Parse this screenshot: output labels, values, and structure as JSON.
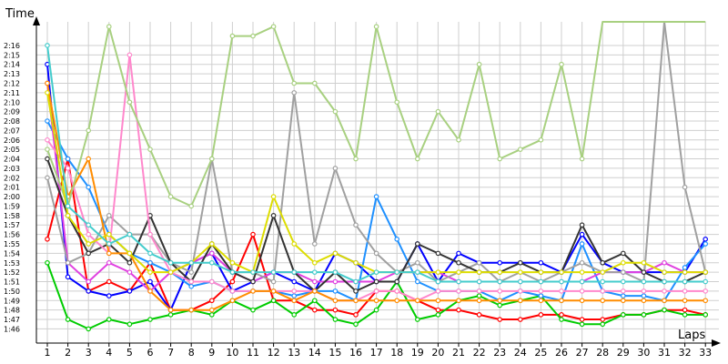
{
  "chart_data": {
    "type": "line",
    "ylabel": "Time",
    "xlabel": "Laps",
    "x": [
      1,
      2,
      3,
      4,
      5,
      6,
      7,
      8,
      9,
      10,
      11,
      12,
      13,
      14,
      15,
      16,
      17,
      18,
      19,
      20,
      21,
      22,
      23,
      24,
      25,
      26,
      27,
      28,
      29,
      30,
      31,
      32,
      33
    ],
    "y_tick_seconds": [
      106,
      107,
      108,
      109,
      110,
      111,
      112,
      113,
      114,
      115,
      116,
      117,
      118,
      119,
      120,
      121,
      122,
      123,
      124,
      125,
      126,
      127,
      128,
      129,
      130,
      131,
      132,
      133,
      134,
      135,
      136
    ],
    "y_tick_labels": [
      "1:46",
      "1:47",
      "1:48",
      "1:49",
      "1:50",
      "1:51",
      "1:52",
      "1:53",
      "1:54",
      "1:55",
      "1:56",
      "1:57",
      "1:58",
      "1:59",
      "2:00",
      "2:01",
      "2:02",
      "2:03",
      "2:04",
      "2:05",
      "2:06",
      "2:07",
      "2:08",
      "2:09",
      "2:10",
      "2:11",
      "2:12",
      "2:13",
      "2:14",
      "2:15",
      "2:16"
    ],
    "ylim_seconds": [
      104.5,
      138.5
    ],
    "grid": true,
    "legend": "none",
    "series": [
      {
        "color": "#ff0000",
        "values": [
          115.5,
          124,
          110,
          111,
          110,
          113,
          108,
          108,
          109,
          111,
          116,
          109,
          109,
          108,
          108,
          107.5,
          110,
          110,
          109,
          108,
          108,
          107.5,
          107,
          107,
          107.5,
          107.5,
          107,
          107,
          107.5,
          107.5,
          108,
          108,
          107.5
        ]
      },
      {
        "color": "#00cc00",
        "values": [
          113,
          107,
          106,
          107,
          106.5,
          107,
          107.5,
          108,
          107.5,
          109,
          108,
          109,
          107.5,
          109,
          107,
          106.5,
          108,
          111,
          107,
          107.5,
          109,
          109.5,
          108.5,
          109,
          109.5,
          107,
          106.5,
          106.5,
          107.5,
          107.5,
          108,
          107.5,
          107.5
        ]
      },
      {
        "color": "#0000ff",
        "values": [
          134,
          111.5,
          110,
          109.5,
          110,
          111,
          108,
          113,
          114,
          110,
          111,
          112,
          111,
          110,
          114,
          113,
          111,
          111,
          115,
          111,
          114,
          113,
          113,
          113,
          113,
          112,
          116,
          113,
          112,
          112,
          112,
          112,
          115.5
        ]
      },
      {
        "color": "#1e90ff",
        "values": [
          128,
          124,
          121,
          116,
          114,
          113,
          112,
          110.5,
          111,
          110,
          110,
          110,
          109.5,
          110,
          110,
          109,
          120,
          115.5,
          111,
          110,
          110,
          110,
          109,
          110,
          109.5,
          109,
          115,
          110,
          109.5,
          109.5,
          109,
          112.5,
          115
        ]
      },
      {
        "color": "#e040e0",
        "values": [
          132,
          113,
          111,
          113,
          112,
          110,
          112,
          113,
          114,
          112,
          111,
          112,
          112,
          111,
          111,
          111,
          111,
          112,
          112,
          112,
          111,
          111,
          111,
          111,
          111,
          111,
          111,
          112,
          112,
          112,
          113,
          112,
          112
        ]
      },
      {
        "color": "#a0a0a0",
        "values": [
          122,
          113,
          114,
          118,
          116,
          116,
          113,
          112,
          124,
          112,
          112,
          111,
          131,
          115,
          123,
          117,
          114,
          112,
          113,
          111,
          112,
          113,
          111,
          112,
          111,
          112,
          113,
          112,
          112,
          111,
          140,
          121,
          112
        ]
      },
      {
        "color": "#333333",
        "values": [
          124,
          118,
          114,
          115,
          113,
          118,
          113,
          111,
          115,
          112,
          111,
          118,
          112,
          110,
          112,
          110,
          111,
          111,
          115,
          114,
          113,
          112,
          112,
          113,
          112,
          112,
          117,
          113,
          114,
          112,
          111,
          111,
          112
        ]
      },
      {
        "color": "#ff88cc",
        "values": [
          126,
          123,
          116,
          114,
          135,
          116,
          112,
          111,
          111,
          110,
          110,
          110,
          110,
          110,
          109,
          109,
          110,
          110,
          109,
          110,
          110,
          110,
          110,
          110,
          110,
          110,
          110,
          110,
          110,
          110,
          110,
          110,
          110
        ]
      },
      {
        "color": "#ff8c00",
        "values": [
          132,
          120,
          124,
          114,
          114,
          110,
          108,
          108,
          108,
          109,
          110,
          110,
          109,
          110,
          109,
          109,
          109,
          109,
          109,
          109,
          109,
          109,
          109,
          109,
          109,
          109,
          109,
          109,
          109,
          109,
          109,
          109,
          109
        ]
      },
      {
        "color": "#a8d080",
        "values": [
          125,
          119,
          127,
          138,
          130,
          125,
          120,
          119,
          124,
          137,
          137,
          138,
          132,
          132,
          129,
          124,
          138,
          130,
          124,
          129,
          126,
          134,
          124,
          125,
          126,
          134,
          124,
          140,
          140,
          140,
          140,
          140,
          140
        ]
      },
      {
        "color": "#dddd00",
        "values": [
          131,
          118,
          115,
          116,
          114,
          112,
          112,
          113,
          115,
          113,
          112,
          120,
          115,
          113,
          114,
          113,
          112,
          112,
          112,
          112,
          112,
          112,
          112,
          112,
          112,
          112,
          112,
          112,
          113,
          113,
          112,
          112,
          112
        ]
      },
      {
        "color": "#44cccc",
        "values": [
          136,
          119,
          117,
          115,
          116,
          114,
          113,
          113,
          113,
          112,
          112,
          112,
          112,
          112,
          112,
          111,
          112,
          112,
          112,
          111,
          111,
          111,
          111,
          111,
          111,
          111,
          111,
          111,
          111,
          111,
          111,
          111,
          111
        ]
      }
    ]
  }
}
